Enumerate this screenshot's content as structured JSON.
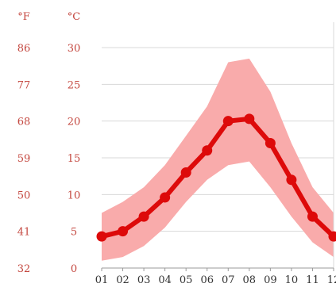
{
  "chart_data": {
    "type": "line",
    "units": {
      "f": "°F",
      "c": "°C"
    },
    "categories": [
      "01",
      "02",
      "03",
      "04",
      "05",
      "06",
      "07",
      "08",
      "09",
      "10",
      "11",
      "12"
    ],
    "series": [
      {
        "values": [
          4.3,
          5.0,
          7.0,
          9.6,
          13.0,
          16.0,
          20.0,
          20.3,
          17.0,
          12.0,
          7.0,
          4.3
        ]
      }
    ],
    "band": {
      "low": [
        1.0,
        1.5,
        3.0,
        5.5,
        9.0,
        12.0,
        14.0,
        14.5,
        11.0,
        7.0,
        3.5,
        1.5
      ],
      "high": [
        7.5,
        9.0,
        11.0,
        14.0,
        18.0,
        22.0,
        28.0,
        28.5,
        24.0,
        17.0,
        11.0,
        7.5
      ]
    },
    "y_ticks_c": [
      "0",
      "5",
      "10",
      "15",
      "20",
      "25",
      "30"
    ],
    "y_ticks_f": [
      "32",
      "41",
      "50",
      "59",
      "68",
      "77",
      "86"
    ],
    "ylim": [
      0,
      30
    ],
    "grid": true,
    "colors": {
      "line": "#dd0a0a",
      "band": "#f9abab",
      "tick_text": "#c4473f",
      "grid": "#d8d8d8",
      "axis": "#999999"
    }
  }
}
